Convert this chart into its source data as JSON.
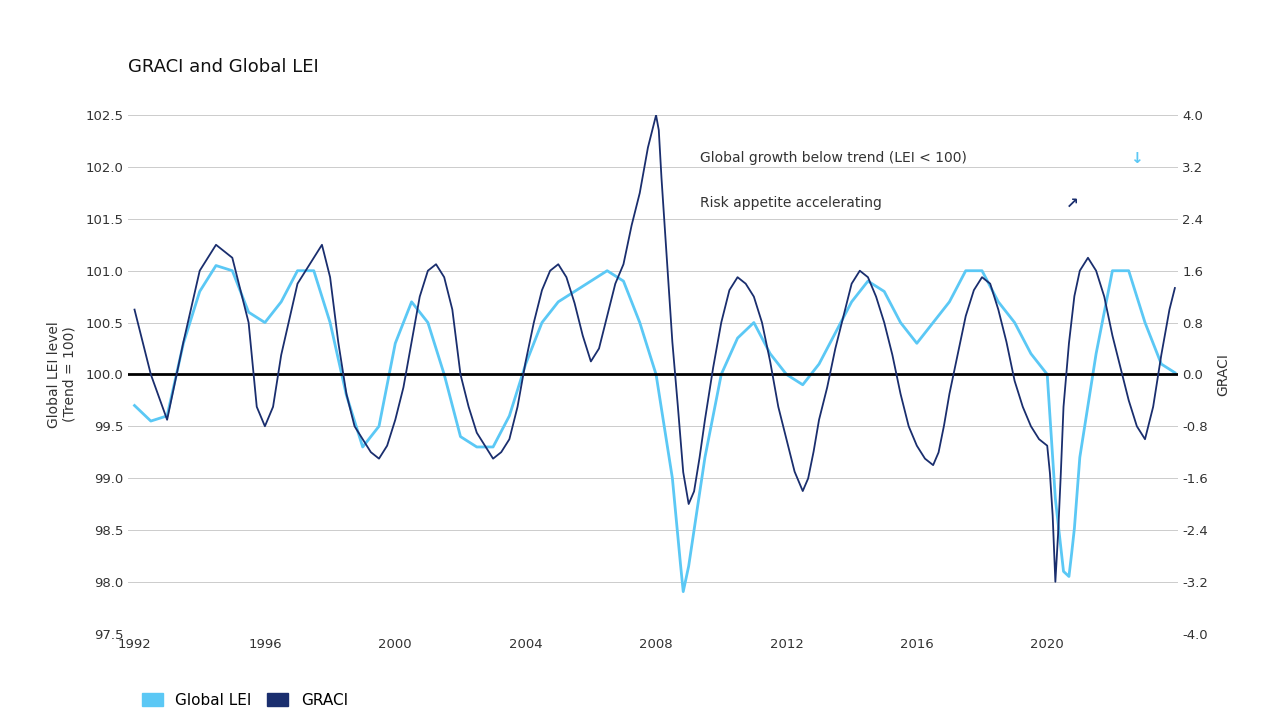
{
  "title": "GRACI and Global LEI",
  "ylabel_left": "Global LEI level\n(Trend = 100)",
  "ylabel_right": "GRACI",
  "ylim_left": [
    97.5,
    102.5
  ],
  "ylim_right": [
    -4.0,
    4.0
  ],
  "yticks_left": [
    97.5,
    98.0,
    98.5,
    99.0,
    99.5,
    100.0,
    100.5,
    101.0,
    101.5,
    102.0,
    102.5
  ],
  "yticks_right": [
    -4.0,
    -3.2,
    -2.4,
    -1.6,
    -0.8,
    0.0,
    0.8,
    1.6,
    2.4,
    3.2,
    4.0
  ],
  "xticks": [
    1992,
    1996,
    2000,
    2004,
    2008,
    2012,
    2016,
    2020
  ],
  "xlim": [
    1991.8,
    2024.0
  ],
  "lei_color": "#5BC8F5",
  "graci_color": "#1A2E6E",
  "annotation1": "Global growth below trend (LEI < 100)",
  "annotation1_arrow": "↓",
  "annotation1_arrow_color": "#5BC8F5",
  "annotation2": "Risk appetite accelerating",
  "annotation2_arrow": "↗",
  "annotation2_arrow_color": "#1A2E6E",
  "legend_lei": "Global LEI",
  "legend_graci": "GRACI",
  "hline_y": 100.0,
  "hline_color": "#000000",
  "background_color": "#ffffff",
  "grid_color": "#cccccc",
  "title_fontsize": 13,
  "label_fontsize": 10,
  "tick_fontsize": 9.5,
  "lei_linewidth": 2.0,
  "graci_linewidth": 1.3
}
